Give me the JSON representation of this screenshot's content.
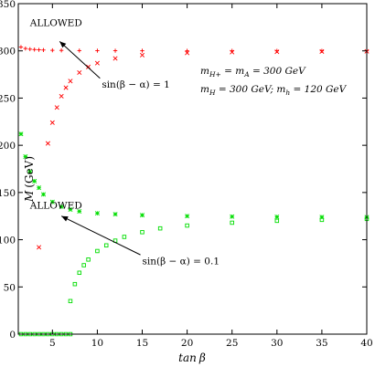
{
  "chart_data": {
    "type": "scatter",
    "xlabel": "tan β",
    "ylabel": "M (GeV)",
    "xlim": [
      1.2,
      40
    ],
    "ylim": [
      0,
      350
    ],
    "xticks": [
      5,
      10,
      15,
      20,
      25,
      30,
      35,
      40
    ],
    "yticks": [
      0,
      50,
      100,
      150,
      200,
      250,
      300,
      350
    ],
    "colors": {
      "red": "#ff0000",
      "green": "#00dd00"
    },
    "series": [
      {
        "marker": "plus",
        "color": "red",
        "x": [
          1.5,
          2.0,
          2.5,
          3.0,
          3.5,
          4.0,
          5.0,
          6.0,
          8.0,
          10.0,
          12.0,
          15.0,
          20.0,
          25.0,
          30.0,
          35.0,
          40.0
        ],
        "y": [
          304,
          302.5,
          301.8,
          301.4,
          301.1,
          300.9,
          300.6,
          300.5,
          300.3,
          300.2,
          300.15,
          300.1,
          300.05,
          300.03,
          300.02,
          300.01,
          300.0
        ]
      },
      {
        "marker": "cross",
        "color": "red",
        "x": [
          3.5,
          4.5,
          5.0,
          5.5,
          6.0,
          6.5,
          7.0,
          8.0,
          9.0,
          10.0,
          12.0,
          15.0,
          20.0,
          25.0,
          30.0,
          35.0,
          40.0
        ],
        "y": [
          92,
          202,
          224,
          240,
          252,
          261,
          268,
          277,
          283,
          287,
          292,
          295.5,
          297.8,
          298.6,
          299.0,
          299.3,
          299.5
        ]
      },
      {
        "marker": "star",
        "color": "green",
        "x": [
          1.5,
          2.0,
          2.5,
          3.0,
          3.5,
          4.0,
          5.0,
          6.0,
          7.0,
          8.0,
          10.0,
          12.0,
          15.0,
          20.0,
          25.0,
          30.0,
          35.0,
          40.0
        ],
        "y": [
          212,
          188,
          172,
          162,
          155,
          148,
          140,
          135,
          132,
          130,
          128,
          127,
          126,
          125,
          124.5,
          124.2,
          124.0,
          123.9
        ]
      },
      {
        "marker": "square",
        "color": "green",
        "x": [
          7.0,
          7.5,
          8.0,
          8.5,
          9.0,
          10.0,
          11.0,
          12.0,
          13.0,
          15.0,
          17.0,
          20.0,
          25.0,
          30.0,
          35.0,
          40.0
        ],
        "y": [
          35,
          53,
          65,
          73,
          79,
          88,
          94,
          99,
          103,
          108,
          112,
          115,
          118,
          120,
          121,
          122
        ]
      },
      {
        "marker": "square",
        "color": "green",
        "x": [
          1.5,
          2.0,
          2.5,
          3.0,
          3.5,
          4.0,
          4.5,
          5.0,
          5.5,
          6.0,
          6.5,
          7.0
        ],
        "y": [
          0,
          0,
          0,
          0,
          0,
          0,
          0,
          0,
          0,
          0,
          0,
          0
        ]
      }
    ],
    "annotations": [
      {
        "text": "ALLOWED",
        "x": 2.5,
        "y": 330
      },
      {
        "text": "sin(β − α) = 1",
        "x": 10.5,
        "y": 265
      },
      {
        "text": "ALLOWED",
        "x": 2.5,
        "y": 137
      },
      {
        "text": "sin(β − α) = 0.1",
        "x": 15.0,
        "y": 78
      }
    ],
    "arrows": [
      {
        "from": [
          10.3,
          271
        ],
        "to": [
          5.8,
          310
        ]
      },
      {
        "from": [
          14.8,
          84
        ],
        "to": [
          6.0,
          125
        ]
      }
    ],
    "mass_labels": [
      {
        "text": "m_{H+} = m_A = 300 GeV",
        "x": 20.0,
        "y": 300
      },
      {
        "text": "m_H = 300 GeV;  m_h = 120 GeV",
        "x": 20.0,
        "y": 278
      }
    ]
  }
}
